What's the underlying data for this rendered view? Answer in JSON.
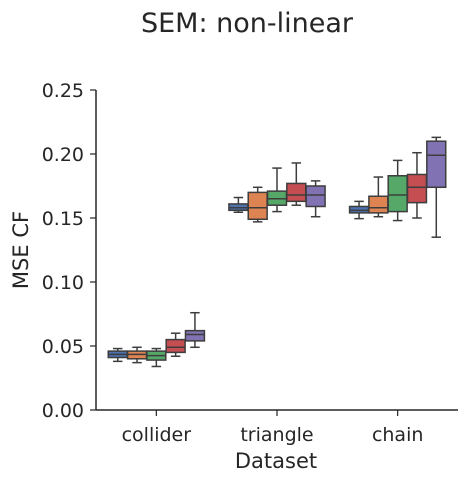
{
  "chart_data": {
    "type": "boxplot",
    "title": "SEM: non-linear",
    "xlabel": "Dataset",
    "ylabel": "MSE CF",
    "ylim": [
      0.0,
      0.25
    ],
    "yticks": [
      "0.00",
      "0.05",
      "0.10",
      "0.15",
      "0.20",
      "0.25"
    ],
    "categories": [
      "collider",
      "triangle",
      "chain"
    ],
    "grid": false,
    "series": [
      {
        "color": "#4c72b0",
        "boxes": [
          {
            "whislo": 0.038,
            "q1": 0.041,
            "med": 0.0435,
            "q3": 0.046,
            "whishi": 0.048
          },
          {
            "whislo": 0.1545,
            "q1": 0.156,
            "med": 0.158,
            "q3": 0.161,
            "whishi": 0.166
          },
          {
            "whislo": 0.1495,
            "q1": 0.154,
            "med": 0.156,
            "q3": 0.159,
            "whishi": 0.163
          }
        ]
      },
      {
        "color": "#dd8452",
        "boxes": [
          {
            "whislo": 0.037,
            "q1": 0.04,
            "med": 0.0435,
            "q3": 0.046,
            "whishi": 0.049
          },
          {
            "whislo": 0.147,
            "q1": 0.149,
            "med": 0.158,
            "q3": 0.17,
            "whishi": 0.174
          },
          {
            "whislo": 0.151,
            "q1": 0.154,
            "med": 0.158,
            "q3": 0.167,
            "whishi": 0.182
          }
        ]
      },
      {
        "color": "#55a868",
        "boxes": [
          {
            "whislo": 0.034,
            "q1": 0.039,
            "med": 0.0425,
            "q3": 0.046,
            "whishi": 0.048
          },
          {
            "whislo": 0.155,
            "q1": 0.16,
            "med": 0.165,
            "q3": 0.171,
            "whishi": 0.189
          },
          {
            "whislo": 0.148,
            "q1": 0.155,
            "med": 0.168,
            "q3": 0.183,
            "whishi": 0.195
          }
        ]
      },
      {
        "color": "#c44e52",
        "boxes": [
          {
            "whislo": 0.042,
            "q1": 0.045,
            "med": 0.049,
            "q3": 0.055,
            "whishi": 0.06
          },
          {
            "whislo": 0.16,
            "q1": 0.163,
            "med": 0.168,
            "q3": 0.177,
            "whishi": 0.193
          },
          {
            "whislo": 0.15,
            "q1": 0.162,
            "med": 0.174,
            "q3": 0.184,
            "whishi": 0.201
          }
        ]
      },
      {
        "color": "#8172b3",
        "boxes": [
          {
            "whislo": 0.049,
            "q1": 0.054,
            "med": 0.059,
            "q3": 0.062,
            "whishi": 0.076
          },
          {
            "whislo": 0.151,
            "q1": 0.159,
            "med": 0.168,
            "q3": 0.175,
            "whishi": 0.179
          },
          {
            "whislo": 0.135,
            "q1": 0.174,
            "med": 0.199,
            "q3": 0.21,
            "whishi": 0.213
          }
        ]
      }
    ]
  }
}
